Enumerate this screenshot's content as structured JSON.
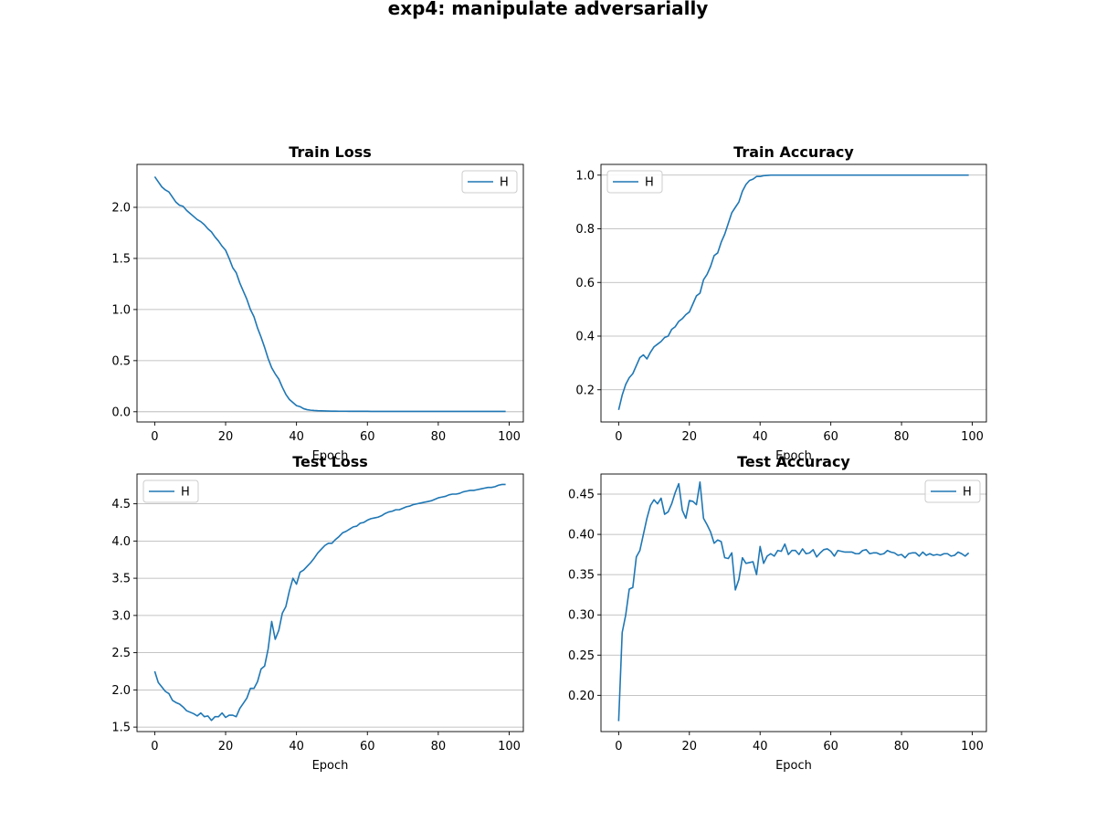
{
  "figure": {
    "suptitle": "exp4: manipulate adversarially"
  },
  "chart_data": [
    {
      "type": "line",
      "title": "Train Loss",
      "xlabel": "Epoch",
      "ylabel": "",
      "xlim": [
        -5,
        104
      ],
      "ylim": [
        -0.1,
        2.42
      ],
      "xticks": [
        0,
        20,
        40,
        60,
        80,
        100
      ],
      "yticks": [
        0.0,
        0.5,
        1.0,
        1.5,
        2.0
      ],
      "ytick_decimals": 1,
      "grid": "y",
      "legend_position": "upper right",
      "color": "#1f77b4",
      "series": [
        {
          "name": "H",
          "x": [
            0,
            1,
            2,
            3,
            4,
            5,
            6,
            7,
            8,
            9,
            10,
            11,
            12,
            13,
            14,
            15,
            16,
            17,
            18,
            19,
            20,
            21,
            22,
            23,
            24,
            25,
            26,
            27,
            28,
            29,
            30,
            31,
            32,
            33,
            34,
            35,
            36,
            37,
            38,
            39,
            40,
            41,
            42,
            43,
            44,
            45,
            46,
            47,
            48,
            49,
            50,
            51,
            52,
            53,
            54,
            55,
            56,
            57,
            58,
            59,
            60,
            61,
            62,
            63,
            64,
            65,
            66,
            67,
            68,
            69,
            70,
            71,
            72,
            73,
            74,
            75,
            76,
            77,
            78,
            79,
            80,
            81,
            82,
            83,
            84,
            85,
            86,
            87,
            88,
            89,
            90,
            91,
            92,
            93,
            94,
            95,
            96,
            97,
            98,
            99
          ],
          "y": [
            2.3,
            2.25,
            2.2,
            2.17,
            2.15,
            2.1,
            2.05,
            2.02,
            2.01,
            1.97,
            1.94,
            1.91,
            1.88,
            1.86,
            1.83,
            1.79,
            1.76,
            1.71,
            1.67,
            1.62,
            1.58,
            1.5,
            1.41,
            1.36,
            1.26,
            1.18,
            1.1,
            1.0,
            0.93,
            0.82,
            0.73,
            0.63,
            0.52,
            0.43,
            0.37,
            0.32,
            0.24,
            0.17,
            0.12,
            0.09,
            0.06,
            0.05,
            0.03,
            0.02,
            0.015,
            0.012,
            0.01,
            0.009,
            0.008,
            0.007,
            0.006,
            0.006,
            0.005,
            0.005,
            0.005,
            0.004,
            0.004,
            0.004,
            0.004,
            0.004,
            0.004,
            0.003,
            0.003,
            0.003,
            0.003,
            0.003,
            0.003,
            0.003,
            0.003,
            0.003,
            0.003,
            0.003,
            0.003,
            0.003,
            0.003,
            0.003,
            0.003,
            0.003,
            0.003,
            0.003,
            0.003,
            0.003,
            0.003,
            0.003,
            0.003,
            0.003,
            0.003,
            0.003,
            0.003,
            0.003,
            0.003,
            0.003,
            0.003,
            0.003,
            0.003,
            0.003,
            0.003,
            0.003,
            0.003,
            0.003
          ]
        }
      ]
    },
    {
      "type": "line",
      "title": "Train Accuracy",
      "xlabel": "Epoch",
      "ylabel": "",
      "xlim": [
        -5,
        104
      ],
      "ylim": [
        0.08,
        1.04
      ],
      "xticks": [
        0,
        20,
        40,
        60,
        80,
        100
      ],
      "yticks": [
        0.2,
        0.4,
        0.6,
        0.8,
        1.0
      ],
      "ytick_decimals": 1,
      "grid": "y",
      "legend_position": "upper left",
      "color": "#1f77b4",
      "series": [
        {
          "name": "H",
          "x": [
            0,
            1,
            2,
            3,
            4,
            5,
            6,
            7,
            8,
            9,
            10,
            11,
            12,
            13,
            14,
            15,
            16,
            17,
            18,
            19,
            20,
            21,
            22,
            23,
            24,
            25,
            26,
            27,
            28,
            29,
            30,
            31,
            32,
            33,
            34,
            35,
            36,
            37,
            38,
            39,
            40,
            41,
            42,
            43,
            44,
            45,
            46,
            47,
            48,
            49,
            50,
            51,
            52,
            53,
            54,
            55,
            56,
            57,
            58,
            59,
            60,
            61,
            62,
            63,
            64,
            65,
            66,
            67,
            68,
            69,
            70,
            71,
            72,
            73,
            74,
            75,
            76,
            77,
            78,
            79,
            80,
            81,
            82,
            83,
            84,
            85,
            86,
            87,
            88,
            89,
            90,
            91,
            92,
            93,
            94,
            95,
            96,
            97,
            98,
            99
          ],
          "y": [
            0.125,
            0.18,
            0.22,
            0.245,
            0.26,
            0.29,
            0.32,
            0.33,
            0.315,
            0.34,
            0.36,
            0.37,
            0.38,
            0.395,
            0.4,
            0.425,
            0.435,
            0.455,
            0.465,
            0.48,
            0.49,
            0.52,
            0.55,
            0.56,
            0.61,
            0.63,
            0.66,
            0.7,
            0.71,
            0.75,
            0.78,
            0.82,
            0.86,
            0.88,
            0.9,
            0.94,
            0.965,
            0.98,
            0.985,
            0.995,
            0.995,
            0.998,
            0.999,
            1.0,
            1.0,
            1.0,
            1.0,
            1.0,
            1.0,
            1.0,
            1.0,
            1.0,
            1.0,
            1.0,
            1.0,
            1.0,
            1.0,
            1.0,
            1.0,
            1.0,
            1.0,
            1.0,
            1.0,
            1.0,
            1.0,
            1.0,
            1.0,
            1.0,
            1.0,
            1.0,
            1.0,
            1.0,
            1.0,
            1.0,
            1.0,
            1.0,
            1.0,
            1.0,
            1.0,
            1.0,
            1.0,
            1.0,
            1.0,
            1.0,
            1.0,
            1.0,
            1.0,
            1.0,
            1.0,
            1.0,
            1.0,
            1.0,
            1.0,
            1.0,
            1.0,
            1.0,
            1.0,
            1.0,
            1.0,
            1.0
          ]
        }
      ]
    },
    {
      "type": "line",
      "title": "Test Loss",
      "xlabel": "Epoch",
      "ylabel": "",
      "xlim": [
        -5,
        104
      ],
      "ylim": [
        1.44,
        4.9
      ],
      "xticks": [
        0,
        20,
        40,
        60,
        80,
        100
      ],
      "yticks": [
        1.5,
        2.0,
        2.5,
        3.0,
        3.5,
        4.0,
        4.5
      ],
      "ytick_decimals": 1,
      "grid": "y",
      "legend_position": "upper left",
      "color": "#1f77b4",
      "series": [
        {
          "name": "H",
          "x": [
            0,
            1,
            2,
            3,
            4,
            5,
            6,
            7,
            8,
            9,
            10,
            11,
            12,
            13,
            14,
            15,
            16,
            17,
            18,
            19,
            20,
            21,
            22,
            23,
            24,
            25,
            26,
            27,
            28,
            29,
            30,
            31,
            32,
            33,
            34,
            35,
            36,
            37,
            38,
            39,
            40,
            41,
            42,
            43,
            44,
            45,
            46,
            47,
            48,
            49,
            50,
            51,
            52,
            53,
            54,
            55,
            56,
            57,
            58,
            59,
            60,
            61,
            62,
            63,
            64,
            65,
            66,
            67,
            68,
            69,
            70,
            71,
            72,
            73,
            74,
            75,
            76,
            77,
            78,
            79,
            80,
            81,
            82,
            83,
            84,
            85,
            86,
            87,
            88,
            89,
            90,
            91,
            92,
            93,
            94,
            95,
            96,
            97,
            98,
            99
          ],
          "y": [
            2.25,
            2.1,
            2.04,
            1.98,
            1.95,
            1.86,
            1.83,
            1.81,
            1.77,
            1.72,
            1.7,
            1.68,
            1.65,
            1.69,
            1.64,
            1.65,
            1.59,
            1.64,
            1.64,
            1.69,
            1.63,
            1.66,
            1.66,
            1.64,
            1.75,
            1.82,
            1.89,
            2.02,
            2.02,
            2.11,
            2.28,
            2.32,
            2.55,
            2.92,
            2.68,
            2.8,
            3.03,
            3.12,
            3.33,
            3.5,
            3.42,
            3.58,
            3.61,
            3.66,
            3.71,
            3.77,
            3.84,
            3.89,
            3.94,
            3.97,
            3.97,
            4.02,
            4.06,
            4.11,
            4.13,
            4.16,
            4.19,
            4.2,
            4.24,
            4.25,
            4.28,
            4.3,
            4.31,
            4.32,
            4.34,
            4.37,
            4.39,
            4.4,
            4.42,
            4.42,
            4.44,
            4.46,
            4.47,
            4.49,
            4.5,
            4.51,
            4.52,
            4.53,
            4.54,
            4.56,
            4.58,
            4.59,
            4.6,
            4.62,
            4.63,
            4.63,
            4.64,
            4.66,
            4.67,
            4.68,
            4.68,
            4.69,
            4.7,
            4.71,
            4.72,
            4.72,
            4.73,
            4.75,
            4.76,
            4.76
          ]
        }
      ]
    },
    {
      "type": "line",
      "title": "Test Accuracy",
      "xlabel": "Epoch",
      "ylabel": "",
      "xlim": [
        -5,
        104
      ],
      "ylim": [
        0.155,
        0.475
      ],
      "xticks": [
        0,
        20,
        40,
        60,
        80,
        100
      ],
      "yticks": [
        0.2,
        0.25,
        0.3,
        0.35,
        0.4,
        0.45
      ],
      "ytick_decimals": 2,
      "grid": "y",
      "legend_position": "upper right",
      "color": "#1f77b4",
      "series": [
        {
          "name": "H",
          "x": [
            0,
            1,
            2,
            3,
            4,
            5,
            6,
            7,
            8,
            9,
            10,
            11,
            12,
            13,
            14,
            15,
            16,
            17,
            18,
            19,
            20,
            21,
            22,
            23,
            24,
            25,
            26,
            27,
            28,
            29,
            30,
            31,
            32,
            33,
            34,
            35,
            36,
            37,
            38,
            39,
            40,
            41,
            42,
            43,
            44,
            45,
            46,
            47,
            48,
            49,
            50,
            51,
            52,
            53,
            54,
            55,
            56,
            57,
            58,
            59,
            60,
            61,
            62,
            63,
            64,
            65,
            66,
            67,
            68,
            69,
            70,
            71,
            72,
            73,
            74,
            75,
            76,
            77,
            78,
            79,
            80,
            81,
            82,
            83,
            84,
            85,
            86,
            87,
            88,
            89,
            90,
            91,
            92,
            93,
            94,
            95,
            96,
            97,
            98,
            99
          ],
          "y": [
            0.168,
            0.278,
            0.3,
            0.332,
            0.334,
            0.372,
            0.38,
            0.4,
            0.42,
            0.436,
            0.443,
            0.438,
            0.445,
            0.425,
            0.428,
            0.438,
            0.452,
            0.463,
            0.43,
            0.42,
            0.442,
            0.441,
            0.437,
            0.465,
            0.42,
            0.412,
            0.403,
            0.389,
            0.393,
            0.391,
            0.371,
            0.37,
            0.377,
            0.331,
            0.344,
            0.371,
            0.364,
            0.365,
            0.366,
            0.35,
            0.385,
            0.364,
            0.373,
            0.376,
            0.373,
            0.38,
            0.379,
            0.388,
            0.375,
            0.38,
            0.38,
            0.375,
            0.382,
            0.376,
            0.377,
            0.381,
            0.372,
            0.377,
            0.381,
            0.382,
            0.379,
            0.373,
            0.38,
            0.379,
            0.378,
            0.378,
            0.378,
            0.376,
            0.376,
            0.38,
            0.381,
            0.376,
            0.377,
            0.377,
            0.375,
            0.376,
            0.38,
            0.378,
            0.377,
            0.374,
            0.375,
            0.371,
            0.376,
            0.377,
            0.377,
            0.373,
            0.378,
            0.374,
            0.376,
            0.374,
            0.375,
            0.374,
            0.376,
            0.376,
            0.373,
            0.374,
            0.378,
            0.376,
            0.373,
            0.377
          ]
        }
      ]
    }
  ]
}
